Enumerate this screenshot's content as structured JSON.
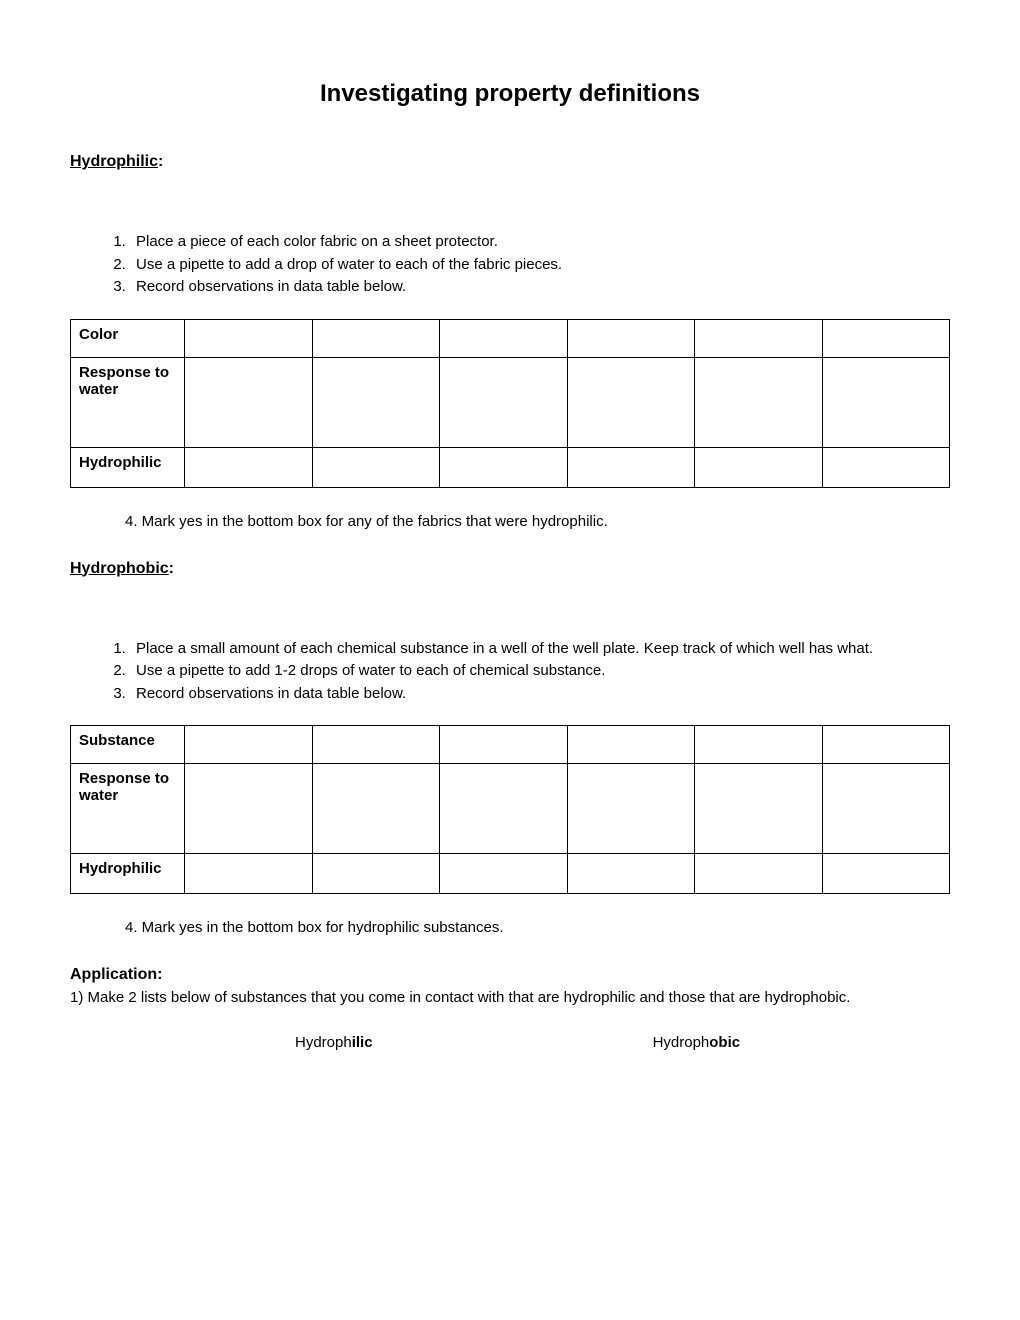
{
  "title": "Investigating property definitions",
  "section1": {
    "heading": "Hydrophilic",
    "headingSuffix": ":",
    "steps": [
      "Place a piece of each color fabric on a sheet protector.",
      "Use a pipette to add a drop of water to each of the fabric pieces.",
      "Record observations in data table below."
    ],
    "table": {
      "rows": [
        "Color",
        "Response to water",
        "Hydrophilic"
      ]
    },
    "followup": "4. Mark yes in the bottom box for any of the fabrics that were hydrophilic."
  },
  "section2": {
    "heading": "Hydrophobic",
    "headingSuffix": ":",
    "steps": [
      "Place a small amount of each chemical substance in a well of the well plate. Keep track of which well has what.",
      "Use a pipette to add 1-2 drops of water to each of chemical substance.",
      "Record observations in data table below."
    ],
    "table": {
      "rows": [
        "Substance",
        "Response to water",
        "Hydrophilic"
      ]
    },
    "followup": "4. Mark yes in the bottom box for hydrophilic substances."
  },
  "application": {
    "label": "Application",
    "labelSuffix": ":",
    "text": "1) Make 2 lists below of substances that you come in contact with that are hydrophilic and those that are hydrophobic.",
    "colLeftPrefix": "Hydroph",
    "colLeftBold": "ilic",
    "colRightPrefix": "Hydroph",
    "colRightBold": "obic"
  }
}
